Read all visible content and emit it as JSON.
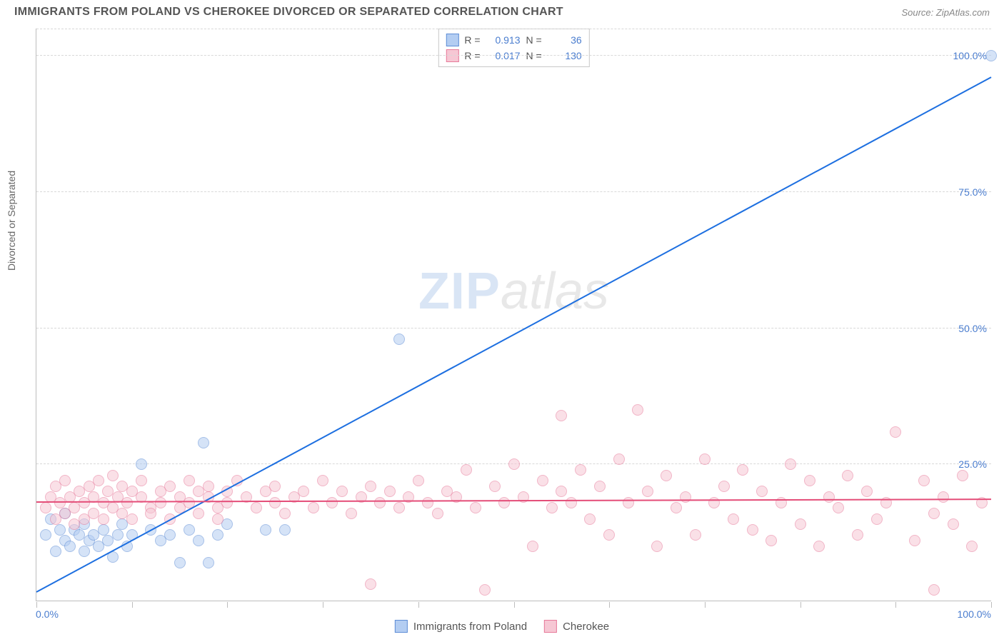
{
  "header": {
    "title": "IMMIGRANTS FROM POLAND VS CHEROKEE DIVORCED OR SEPARATED CORRELATION CHART",
    "source": "Source: ZipAtlas.com"
  },
  "chart": {
    "type": "scatter",
    "y_axis_title": "Divorced or Separated",
    "xlim": [
      0,
      100
    ],
    "ylim": [
      0,
      105
    ],
    "x_tick_positions": [
      0,
      10,
      20,
      30,
      40,
      50,
      60,
      70,
      80,
      90,
      100
    ],
    "x_labels": {
      "start": "0.0%",
      "end": "100.0%"
    },
    "y_gridlines": [
      {
        "v": 25,
        "label": "25.0%"
      },
      {
        "v": 50,
        "label": "50.0%"
      },
      {
        "v": 75,
        "label": "75.0%"
      },
      {
        "v": 100,
        "label": "100.0%"
      }
    ],
    "background_color": "#ffffff",
    "grid_color": "#d8d8d8",
    "axis_color": "#bdbdbd",
    "label_color": "#4a7dcf",
    "marker_radius": 8,
    "marker_opacity": 0.55,
    "series": [
      {
        "key": "poland",
        "name": "Immigrants from Poland",
        "color_fill": "#b3cdf2",
        "color_stroke": "#5f8ed6",
        "trend_color": "#1d6fe0",
        "R": "0.913",
        "N": "36",
        "trend": {
          "x1": 0,
          "y1": 1.5,
          "x2": 100,
          "y2": 96
        },
        "points": [
          [
            1,
            12
          ],
          [
            1.5,
            15
          ],
          [
            2,
            9
          ],
          [
            2.5,
            13
          ],
          [
            3,
            11
          ],
          [
            3,
            16
          ],
          [
            3.5,
            10
          ],
          [
            4,
            13
          ],
          [
            4.5,
            12
          ],
          [
            5,
            9
          ],
          [
            5,
            14
          ],
          [
            5.5,
            11
          ],
          [
            6,
            12
          ],
          [
            6.5,
            10
          ],
          [
            7,
            13
          ],
          [
            7.5,
            11
          ],
          [
            8,
            8
          ],
          [
            8.5,
            12
          ],
          [
            9,
            14
          ],
          [
            9.5,
            10
          ],
          [
            10,
            12
          ],
          [
            11,
            25
          ],
          [
            12,
            13
          ],
          [
            13,
            11
          ],
          [
            14,
            12
          ],
          [
            15,
            7
          ],
          [
            16,
            13
          ],
          [
            17,
            11
          ],
          [
            17.5,
            29
          ],
          [
            18,
            7
          ],
          [
            19,
            12
          ],
          [
            20,
            14
          ],
          [
            24,
            13
          ],
          [
            26,
            13
          ],
          [
            38,
            48
          ],
          [
            100,
            100
          ]
        ]
      },
      {
        "key": "cherokee",
        "name": "Cherokee",
        "color_fill": "#f6c7d4",
        "color_stroke": "#e77a9a",
        "trend_color": "#e44d78",
        "R": "0.017",
        "N": "130",
        "trend": {
          "x1": 0,
          "y1": 18,
          "x2": 100,
          "y2": 18.5
        },
        "points": [
          [
            1,
            17
          ],
          [
            1.5,
            19
          ],
          [
            2,
            15
          ],
          [
            2,
            21
          ],
          [
            2.5,
            18
          ],
          [
            3,
            16
          ],
          [
            3,
            22
          ],
          [
            3.5,
            19
          ],
          [
            4,
            17
          ],
          [
            4,
            14
          ],
          [
            4.5,
            20
          ],
          [
            5,
            18
          ],
          [
            5,
            15
          ],
          [
            5.5,
            21
          ],
          [
            6,
            19
          ],
          [
            6,
            16
          ],
          [
            6.5,
            22
          ],
          [
            7,
            18
          ],
          [
            7,
            15
          ],
          [
            7.5,
            20
          ],
          [
            8,
            17
          ],
          [
            8,
            23
          ],
          [
            8.5,
            19
          ],
          [
            9,
            16
          ],
          [
            9,
            21
          ],
          [
            9.5,
            18
          ],
          [
            10,
            20
          ],
          [
            10,
            15
          ],
          [
            11,
            19
          ],
          [
            11,
            22
          ],
          [
            12,
            17
          ],
          [
            12,
            16
          ],
          [
            13,
            20
          ],
          [
            13,
            18
          ],
          [
            14,
            21
          ],
          [
            14,
            15
          ],
          [
            15,
            19
          ],
          [
            15,
            17
          ],
          [
            16,
            22
          ],
          [
            16,
            18
          ],
          [
            17,
            20
          ],
          [
            17,
            16
          ],
          [
            18,
            19
          ],
          [
            18,
            21
          ],
          [
            19,
            17
          ],
          [
            19,
            15
          ],
          [
            20,
            20
          ],
          [
            20,
            18
          ],
          [
            21,
            22
          ],
          [
            22,
            19
          ],
          [
            23,
            17
          ],
          [
            24,
            20
          ],
          [
            25,
            18
          ],
          [
            25,
            21
          ],
          [
            26,
            16
          ],
          [
            27,
            19
          ],
          [
            28,
            20
          ],
          [
            29,
            17
          ],
          [
            30,
            22
          ],
          [
            31,
            18
          ],
          [
            32,
            20
          ],
          [
            33,
            16
          ],
          [
            34,
            19
          ],
          [
            35,
            21
          ],
          [
            35,
            3
          ],
          [
            36,
            18
          ],
          [
            37,
            20
          ],
          [
            38,
            17
          ],
          [
            39,
            19
          ],
          [
            40,
            22
          ],
          [
            41,
            18
          ],
          [
            42,
            16
          ],
          [
            43,
            20
          ],
          [
            44,
            19
          ],
          [
            45,
            24
          ],
          [
            46,
            17
          ],
          [
            47,
            2
          ],
          [
            48,
            21
          ],
          [
            49,
            18
          ],
          [
            50,
            25
          ],
          [
            51,
            19
          ],
          [
            52,
            10
          ],
          [
            53,
            22
          ],
          [
            54,
            17
          ],
          [
            55,
            20
          ],
          [
            55,
            34
          ],
          [
            56,
            18
          ],
          [
            57,
            24
          ],
          [
            58,
            15
          ],
          [
            59,
            21
          ],
          [
            60,
            12
          ],
          [
            61,
            26
          ],
          [
            62,
            18
          ],
          [
            63,
            35
          ],
          [
            64,
            20
          ],
          [
            65,
            10
          ],
          [
            66,
            23
          ],
          [
            67,
            17
          ],
          [
            68,
            19
          ],
          [
            69,
            12
          ],
          [
            70,
            26
          ],
          [
            71,
            18
          ],
          [
            72,
            21
          ],
          [
            73,
            15
          ],
          [
            74,
            24
          ],
          [
            75,
            13
          ],
          [
            76,
            20
          ],
          [
            77,
            11
          ],
          [
            78,
            18
          ],
          [
            79,
            25
          ],
          [
            80,
            14
          ],
          [
            81,
            22
          ],
          [
            82,
            10
          ],
          [
            83,
            19
          ],
          [
            84,
            17
          ],
          [
            85,
            23
          ],
          [
            86,
            12
          ],
          [
            87,
            20
          ],
          [
            88,
            15
          ],
          [
            89,
            18
          ],
          [
            90,
            31
          ],
          [
            92,
            11
          ],
          [
            93,
            22
          ],
          [
            94,
            16
          ],
          [
            95,
            19
          ],
          [
            96,
            14
          ],
          [
            97,
            23
          ],
          [
            98,
            10
          ],
          [
            99,
            18
          ],
          [
            94,
            2
          ]
        ]
      }
    ],
    "watermark": {
      "part1": "ZIP",
      "part2": "atlas"
    }
  },
  "legend": {
    "r_label": "R =",
    "n_label": "N ="
  }
}
